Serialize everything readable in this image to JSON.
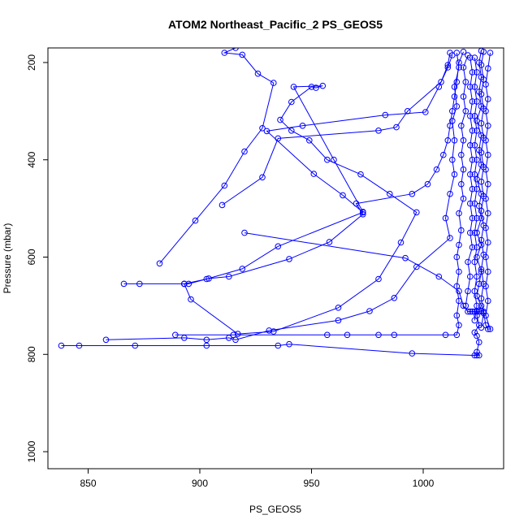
{
  "chart_data": {
    "type": "line",
    "title": "ATOM2 Northeast_Pacific_2 PS_GEOS5",
    "xlabel": "PS_GEOS5",
    "ylabel": "Pressure (mbar)",
    "xlim": [
      832,
      1036
    ],
    "ylim": [
      1035,
      170
    ],
    "y_reversed": true,
    "x_ticks": [
      850,
      900,
      950,
      1000
    ],
    "y_ticks": [
      200,
      400,
      600,
      800,
      1000
    ],
    "grid": false,
    "legend": "none",
    "marker": "open-circle",
    "color": "#0000ff",
    "series": [
      {
        "points": [
          [
            838,
            782
          ],
          [
            846,
            782
          ],
          [
            871,
            782
          ],
          [
            903,
            782
          ],
          [
            935,
            782
          ],
          [
            940,
            779
          ],
          [
            995,
            798
          ],
          [
            1023,
            802
          ],
          [
            1024,
            802
          ],
          [
            1025,
            802
          ],
          [
            1024,
            795
          ],
          [
            1025,
            775
          ],
          [
            1024,
            762
          ],
          [
            1023,
            755
          ],
          [
            1025,
            740
          ],
          [
            1024,
            720
          ],
          [
            1026,
            700
          ],
          [
            1024,
            680
          ],
          [
            1025,
            655
          ],
          [
            1026,
            630
          ],
          [
            1024,
            600
          ],
          [
            1026,
            575
          ],
          [
            1024,
            550
          ],
          [
            1026,
            520
          ],
          [
            1025,
            495
          ],
          [
            1026,
            470
          ],
          [
            1024,
            440
          ],
          [
            1026,
            410
          ],
          [
            1025,
            380
          ],
          [
            1026,
            350
          ],
          [
            1024,
            320
          ],
          [
            1026,
            290
          ],
          [
            1025,
            260
          ],
          [
            1026,
            230
          ],
          [
            1025,
            200
          ],
          [
            1026,
            176
          ]
        ]
      },
      {
        "points": [
          [
            858,
            770
          ],
          [
            893,
            766
          ],
          [
            903,
            770
          ],
          [
            913,
            766
          ],
          [
            916,
            770
          ],
          [
            931,
            751
          ],
          [
            962,
            730
          ],
          [
            976,
            711
          ],
          [
            987,
            684
          ],
          [
            997,
            620
          ],
          [
            1012,
            561
          ],
          [
            1010,
            520
          ],
          [
            1012,
            470
          ],
          [
            1014,
            430
          ],
          [
            1013,
            400
          ],
          [
            1014,
            360
          ],
          [
            1013,
            320
          ],
          [
            1015,
            290
          ],
          [
            1014,
            250
          ],
          [
            1016,
            210
          ],
          [
            1015,
            180
          ]
        ]
      },
      {
        "points": [
          [
            889,
            760
          ],
          [
            915,
            760
          ],
          [
            957,
            760
          ],
          [
            966,
            760
          ],
          [
            980,
            760
          ],
          [
            987,
            760
          ],
          [
            1010,
            760
          ],
          [
            1015,
            760
          ],
          [
            1016,
            740
          ],
          [
            1015,
            720
          ],
          [
            1016,
            690
          ],
          [
            1015,
            660
          ],
          [
            1016,
            630
          ],
          [
            1015,
            600
          ],
          [
            1016,
            575
          ],
          [
            1017,
            545
          ],
          [
            1016,
            510
          ],
          [
            1018,
            480
          ],
          [
            1017,
            450
          ],
          [
            1018,
            420
          ],
          [
            1017,
            390
          ],
          [
            1018,
            360
          ],
          [
            1017,
            330
          ],
          [
            1019,
            300
          ],
          [
            1018,
            270
          ],
          [
            1019,
            240
          ],
          [
            1018,
            210
          ],
          [
            1020,
            185
          ]
        ]
      },
      {
        "points": [
          [
            866,
            655
          ],
          [
            873,
            655
          ],
          [
            893,
            655
          ],
          [
            895,
            655
          ],
          [
            903,
            645
          ],
          [
            919,
            624
          ],
          [
            935,
            578
          ],
          [
            973,
            508
          ],
          [
            964,
            473
          ],
          [
            951,
            429
          ],
          [
            930,
            341
          ],
          [
            946,
            330
          ],
          [
            983,
            308
          ],
          [
            1001,
            302
          ],
          [
            1007,
            250
          ],
          [
            1011,
            210
          ],
          [
            1013,
            185
          ]
        ]
      },
      {
        "points": [
          [
            893,
            655
          ],
          [
            904,
            644
          ],
          [
            913,
            640
          ],
          [
            940,
            604
          ],
          [
            958,
            569
          ],
          [
            973,
            512
          ],
          [
            970,
            490
          ],
          [
            995,
            470
          ],
          [
            1002,
            450
          ],
          [
            1006,
            420
          ],
          [
            1009,
            390
          ],
          [
            1011,
            360
          ],
          [
            1012,
            330
          ],
          [
            1013,
            300
          ],
          [
            1014,
            270
          ],
          [
            1015,
            240
          ],
          [
            1016,
            200
          ],
          [
            1018,
            178
          ]
        ]
      },
      {
        "points": [
          [
            882,
            613
          ],
          [
            898,
            525
          ],
          [
            911,
            453
          ],
          [
            920,
            383
          ],
          [
            928,
            335
          ],
          [
            933,
            242
          ],
          [
            926,
            223
          ],
          [
            919,
            184
          ],
          [
            911,
            180
          ],
          [
            916,
            170
          ]
        ]
      },
      {
        "points": [
          [
            893,
            655
          ],
          [
            896,
            687
          ],
          [
            917,
            758
          ],
          [
            933,
            753
          ],
          [
            962,
            704
          ],
          [
            980,
            645
          ],
          [
            990,
            570
          ],
          [
            997,
            508
          ],
          [
            985,
            470
          ],
          [
            972,
            430
          ],
          [
            957,
            400
          ],
          [
            949,
            360
          ],
          [
            941,
            340
          ],
          [
            936,
            318
          ],
          [
            941,
            281
          ],
          [
            950,
            250
          ],
          [
            952,
            252
          ],
          [
            955,
            248
          ],
          [
            942,
            250
          ],
          [
            960,
            400
          ],
          [
            973,
            507
          ]
        ]
      },
      {
        "points": [
          [
            910,
            493
          ],
          [
            928,
            436
          ],
          [
            935,
            356
          ],
          [
            980,
            340
          ],
          [
            988,
            333
          ],
          [
            993,
            300
          ],
          [
            1008,
            240
          ],
          [
            1011,
            205
          ],
          [
            1012,
            180
          ]
        ]
      },
      {
        "points": [
          [
            920,
            550
          ],
          [
            992,
            602
          ],
          [
            1007,
            640
          ],
          [
            1016,
            670
          ],
          [
            1018,
            700
          ],
          [
            1020,
            712
          ],
          [
            1021,
            712
          ],
          [
            1022,
            712
          ],
          [
            1023,
            712
          ],
          [
            1024,
            712
          ],
          [
            1025,
            712
          ],
          [
            1026,
            710
          ],
          [
            1027,
            712
          ],
          [
            1028,
            740
          ],
          [
            1029,
            748
          ],
          [
            1030,
            748
          ],
          [
            1028,
            720
          ],
          [
            1029,
            690
          ],
          [
            1028,
            660
          ],
          [
            1029,
            630
          ],
          [
            1028,
            600
          ],
          [
            1029,
            570
          ],
          [
            1028,
            540
          ],
          [
            1029,
            510
          ],
          [
            1028,
            480
          ],
          [
            1029,
            450
          ],
          [
            1028,
            420
          ],
          [
            1029,
            390
          ],
          [
            1028,
            360
          ],
          [
            1029,
            330
          ],
          [
            1028,
            300
          ],
          [
            1029,
            275
          ],
          [
            1028,
            245
          ],
          [
            1029,
            212
          ],
          [
            1030,
            180
          ]
        ]
      },
      {
        "points": [
          [
            1019,
            700
          ],
          [
            1020,
            670
          ],
          [
            1021,
            640
          ],
          [
            1020,
            610
          ],
          [
            1022,
            580
          ],
          [
            1021,
            550
          ],
          [
            1022,
            520
          ],
          [
            1021,
            490
          ],
          [
            1022,
            460
          ],
          [
            1021,
            430
          ],
          [
            1022,
            400
          ],
          [
            1021,
            370
          ],
          [
            1022,
            340
          ],
          [
            1021,
            310
          ],
          [
            1022,
            280
          ],
          [
            1021,
            250
          ],
          [
            1022,
            220
          ],
          [
            1021,
            190
          ]
        ]
      },
      {
        "points": [
          [
            1023,
            730
          ],
          [
            1024,
            700
          ],
          [
            1023,
            670
          ],
          [
            1024,
            640
          ],
          [
            1023,
            610
          ],
          [
            1024,
            580
          ],
          [
            1023,
            550
          ],
          [
            1024,
            520
          ],
          [
            1023,
            490
          ],
          [
            1024,
            460
          ],
          [
            1023,
            430
          ],
          [
            1024,
            400
          ],
          [
            1023,
            370
          ],
          [
            1024,
            340
          ],
          [
            1023,
            310
          ],
          [
            1024,
            280
          ],
          [
            1023,
            250
          ],
          [
            1024,
            220
          ],
          [
            1023,
            190
          ]
        ]
      },
      {
        "points": [
          [
            1026,
            745
          ],
          [
            1027,
            715
          ],
          [
            1026,
            685
          ],
          [
            1027,
            655
          ],
          [
            1026,
            625
          ],
          [
            1027,
            595
          ],
          [
            1026,
            565
          ],
          [
            1027,
            535
          ],
          [
            1026,
            505
          ],
          [
            1027,
            475
          ],
          [
            1026,
            445
          ],
          [
            1027,
            415
          ],
          [
            1026,
            385
          ],
          [
            1027,
            355
          ],
          [
            1026,
            325
          ],
          [
            1027,
            295
          ],
          [
            1026,
            265
          ],
          [
            1027,
            235
          ],
          [
            1026,
            205
          ],
          [
            1027,
            178
          ]
        ]
      }
    ]
  }
}
